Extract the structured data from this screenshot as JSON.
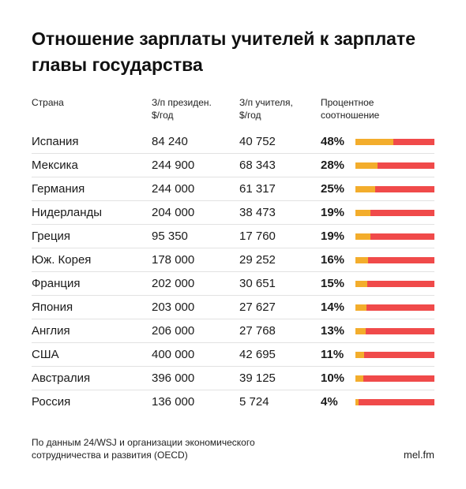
{
  "title": "Отношение зарплаты учителей к зарплате главы государства",
  "columns": {
    "country": "Страна",
    "president": "З/п президен.\n$/год",
    "teacher": "З/п учителя,\n$/год",
    "ratio": "Процентное\nсоотношение"
  },
  "colors": {
    "bar_background": "#f04a4a",
    "bar_fill": "#f3ad2c"
  },
  "chart_data": {
    "type": "table",
    "title": "Отношение зарплаты учителей к зарплате главы государства",
    "rows": [
      {
        "country": "Испания",
        "president": "84 240",
        "teacher": "40 752",
        "ratio_label": "48%",
        "ratio": 48
      },
      {
        "country": "Мексика",
        "president": "244 900",
        "teacher": "68 343",
        "ratio_label": "28%",
        "ratio": 28
      },
      {
        "country": "Германия",
        "president": "244 000",
        "teacher": "61 317",
        "ratio_label": "25%",
        "ratio": 25
      },
      {
        "country": "Нидерланды",
        "president": "204 000",
        "teacher": "38 473",
        "ratio_label": "19%",
        "ratio": 19
      },
      {
        "country": "Греция",
        "president": "95 350",
        "teacher": "17 760",
        "ratio_label": "19%",
        "ratio": 19
      },
      {
        "country": "Юж. Корея",
        "president": "178 000",
        "teacher": "29 252",
        "ratio_label": "16%",
        "ratio": 16
      },
      {
        "country": "Франция",
        "president": "202 000",
        "teacher": "30 651",
        "ratio_label": "15%",
        "ratio": 15
      },
      {
        "country": "Япония",
        "president": "203 000",
        "teacher": "27 627",
        "ratio_label": "14%",
        "ratio": 14
      },
      {
        "country": "Англия",
        "president": "206 000",
        "teacher": "27 768",
        "ratio_label": "13%",
        "ratio": 13
      },
      {
        "country": "США",
        "president": "400 000",
        "teacher": "42 695",
        "ratio_label": "11%",
        "ratio": 11
      },
      {
        "country": "Австралия",
        "president": "396 000",
        "teacher": "39 125",
        "ratio_label": "10%",
        "ratio": 10
      },
      {
        "country": "Россия",
        "president": "136 000",
        "teacher": "5 724",
        "ratio_label": "4%",
        "ratio": 4
      }
    ]
  },
  "footnote": "По данным 24/WSJ и организации экономического сотрудничества и развития (OECD)",
  "source": "mel.fm"
}
